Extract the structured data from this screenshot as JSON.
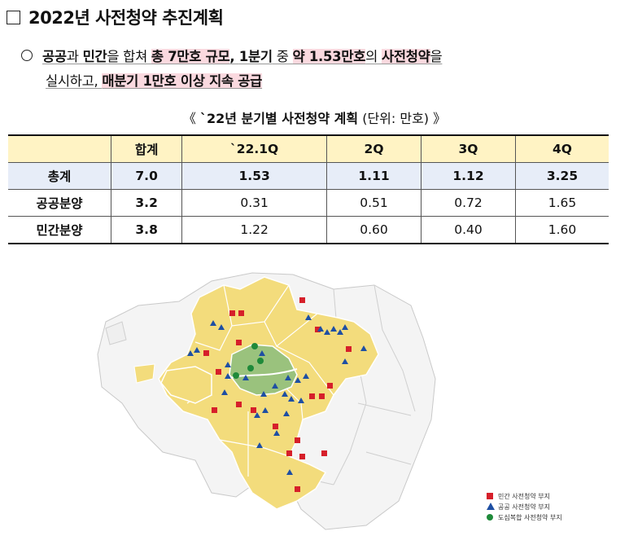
{
  "heading": "2022년 사전청약 추진계획",
  "bullet": {
    "l1_a": "공공",
    "l1_b": "과 ",
    "l1_c": "민간",
    "l1_d": "을 합쳐 ",
    "l1_e": "총 7만호 규모",
    "l1_f": ", ",
    "l1_g": "1분기",
    "l1_h": " 중 ",
    "l1_i": "약 1.53만호",
    "l1_j": "의 ",
    "l1_k": "사전청약",
    "l1_l": "을",
    "l2_a": "실시하고, ",
    "l2_b": "매분기 1만호 이상 지속 공급"
  },
  "caption": {
    "open": "《 ",
    "title": "`22년 분기별 사전청약 계획",
    "unit": " (단위: 만호) ",
    "close": "》"
  },
  "table": {
    "headers": [
      "",
      "합계",
      "`22.1Q",
      "2Q",
      "3Q",
      "4Q"
    ],
    "rows": [
      {
        "label": "총계",
        "values": [
          "7.0",
          "1.53",
          "1.11",
          "1.12",
          "3.25"
        ]
      },
      {
        "label": "공공분양",
        "values": [
          "3.2",
          "0.31",
          "0.51",
          "0.72",
          "1.65"
        ]
      },
      {
        "label": "민간분양",
        "values": [
          "3.8",
          "1.22",
          "0.60",
          "0.40",
          "1.60"
        ]
      }
    ]
  },
  "legend": {
    "private": "민간 사전청약 부지",
    "public": "공공 사전청약 부지",
    "urban": "도심복합 사전청약 부지"
  },
  "colors": {
    "highlight": "#fad9df",
    "header_bg": "#fff3c4",
    "total_bg": "#e7edf8",
    "gyeonggi_fill": "#f3dc7c",
    "seoul_fill": "#9ac27d",
    "private_marker": "#d61f2a",
    "public_marker": "#1e4fa3",
    "urban_marker": "#1f8a3a"
  }
}
